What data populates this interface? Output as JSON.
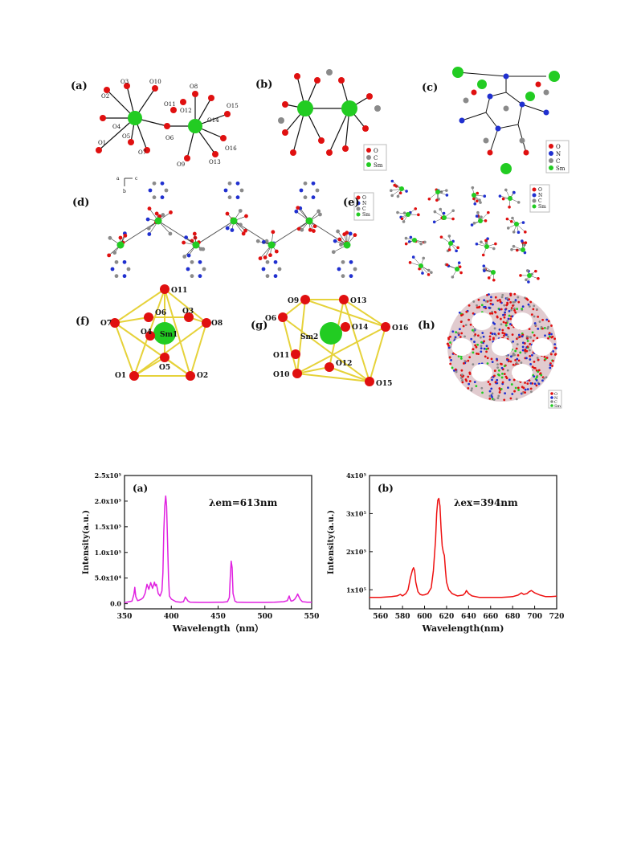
{
  "structure_panels": [
    {
      "label": "(a)",
      "atoms": [
        "O1",
        "O2",
        "O3",
        "O4",
        "O5",
        "O6",
        "O7",
        "O8",
        "O9",
        "O10",
        "O11",
        "O12",
        "O13",
        "O14",
        "O15",
        "O16"
      ]
    },
    {
      "label": "(b)",
      "legend": [
        "O",
        "C",
        "Sm"
      ]
    },
    {
      "label": "(c)",
      "legend": [
        "O",
        "N",
        "C",
        "Sm"
      ]
    },
    {
      "label": "(d)",
      "legend": [
        "O",
        "N",
        "C",
        "Sm"
      ],
      "axes": [
        "a",
        "c",
        "b"
      ]
    },
    {
      "label": "(e)",
      "legend": [
        "O",
        "N",
        "C",
        "Sm"
      ]
    },
    {
      "label": "(f)",
      "atoms": [
        "O11",
        "O6",
        "O3",
        "O8",
        "O7",
        "O4",
        "Sm1",
        "O1",
        "O5",
        "O2"
      ]
    },
    {
      "label": "(g)",
      "atoms": [
        "O9",
        "O13",
        "O6",
        "O14",
        "O16",
        "Sm2",
        "O11",
        "O10",
        "O12",
        "O15"
      ]
    },
    {
      "label": "(h)",
      "legend": [
        "O",
        "N",
        "C",
        "Sm"
      ]
    }
  ],
  "colors": {
    "O": "#e01010",
    "N": "#2030d0",
    "C": "#8a8a8a",
    "Sm": "#22cc22",
    "bond": "#111111",
    "poly": "#e6d23a"
  },
  "chart_data": [
    {
      "type": "line",
      "panel_label": "(a)",
      "annotation": "λem=613nm",
      "xlabel": "Wavelength（nm）",
      "ylabel": "Intensity(a.u.)",
      "xlim": [
        350,
        550
      ],
      "ylim": [
        -10000,
        250000
      ],
      "xticks": [
        350,
        400,
        450,
        500,
        550
      ],
      "yticks": [
        {
          "v": 0,
          "label": "0.0"
        },
        {
          "v": 50000,
          "label": "5.0x10⁴"
        },
        {
          "v": 100000,
          "label": "1.0x10⁵"
        },
        {
          "v": 150000,
          "label": "1.5x10⁵"
        },
        {
          "v": 200000,
          "label": "2.0x10⁵"
        },
        {
          "v": 250000,
          "label": "2.5x10⁵"
        }
      ],
      "color": "#e020e0",
      "x": [
        350,
        355,
        358,
        360,
        361,
        362,
        364,
        366,
        368,
        370,
        372,
        374,
        376,
        378,
        380,
        382,
        383,
        384,
        385,
        386,
        388,
        390,
        391,
        392,
        393,
        394,
        395,
        396,
        397,
        398,
        400,
        405,
        410,
        413,
        415,
        418,
        420,
        430,
        440,
        450,
        455,
        460,
        462,
        463,
        464,
        465,
        466,
        468,
        470,
        480,
        490,
        500,
        510,
        520,
        524,
        526,
        527,
        528,
        530,
        532,
        534,
        535,
        536,
        538,
        540,
        545,
        550
      ],
      "y": [
        2000,
        4000,
        5000,
        18000,
        32000,
        14000,
        6000,
        7000,
        9000,
        12000,
        20000,
        38000,
        28000,
        41000,
        30000,
        42000,
        35000,
        38000,
        30000,
        20000,
        15000,
        25000,
        60000,
        140000,
        190000,
        210000,
        190000,
        120000,
        50000,
        15000,
        9000,
        4000,
        3000,
        4000,
        13000,
        5000,
        3000,
        2500,
        2500,
        3000,
        3000,
        4000,
        12000,
        50000,
        83000,
        70000,
        20000,
        5000,
        3000,
        2500,
        2500,
        2500,
        3000,
        4000,
        6000,
        15000,
        9000,
        5000,
        6000,
        9000,
        15000,
        19000,
        15000,
        8000,
        4000,
        3000,
        3000
      ]
    },
    {
      "type": "line",
      "panel_label": "(b)",
      "annotation": "λex=394nm",
      "xlabel": "Wavelength(nm)",
      "ylabel": "Intensity(a.u.)",
      "xlim": [
        550,
        720
      ],
      "ylim": [
        50000,
        400000
      ],
      "xticks": [
        560,
        580,
        600,
        620,
        640,
        660,
        680,
        700,
        720
      ],
      "yticks": [
        {
          "v": 100000,
          "label": "1x10⁵"
        },
        {
          "v": 200000,
          "label": "2x10⁵"
        },
        {
          "v": 300000,
          "label": "3x10⁵"
        },
        {
          "v": 400000,
          "label": "4x10⁵"
        }
      ],
      "color": "#ee1111",
      "x": [
        550,
        560,
        570,
        575,
        578,
        580,
        583,
        585,
        587,
        589,
        590,
        591,
        592,
        594,
        596,
        598,
        600,
        603,
        606,
        608,
        610,
        611,
        612,
        613,
        614,
        615,
        616,
        617,
        618,
        619,
        620,
        622,
        625,
        630,
        635,
        637,
        638,
        640,
        643,
        650,
        660,
        670,
        680,
        685,
        688,
        690,
        693,
        695,
        697,
        700,
        705,
        710,
        715,
        720
      ],
      "y": [
        80000,
        80000,
        82000,
        84000,
        88000,
        84000,
        90000,
        100000,
        130000,
        152000,
        158000,
        150000,
        120000,
        95000,
        88000,
        86000,
        87000,
        90000,
        105000,
        150000,
        230000,
        300000,
        335000,
        340000,
        320000,
        260000,
        215000,
        200000,
        190000,
        150000,
        120000,
        100000,
        90000,
        84000,
        86000,
        92000,
        98000,
        90000,
        84000,
        80000,
        80000,
        80000,
        82000,
        86000,
        92000,
        88000,
        90000,
        95000,
        98000,
        92000,
        86000,
        82000,
        82000,
        83000
      ]
    }
  ]
}
